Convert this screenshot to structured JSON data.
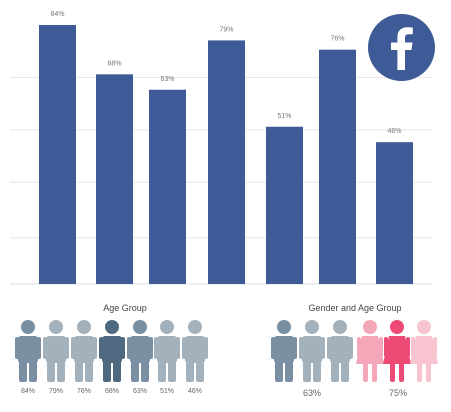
{
  "chart_data": {
    "type": "bar",
    "categories": [
      "",
      "",
      "",
      "",
      "",
      "",
      ""
    ],
    "values": [
      84,
      68,
      63,
      79,
      51,
      76,
      46
    ],
    "value_labels": [
      "84%",
      "68%",
      "63%",
      "79%",
      "51%",
      "76%",
      "46%"
    ],
    "title": "",
    "xlabel": "",
    "ylabel": "",
    "ylim": [
      0,
      100
    ],
    "grid": true,
    "bar_color": "#3e5a97"
  },
  "logo": {
    "name": "facebook-icon",
    "color": "#3e5a97",
    "letter": "f"
  },
  "age_group": {
    "title": "Age Group",
    "people": [
      {
        "label": "84%",
        "color": "#7a8fa1"
      },
      {
        "label": "79%",
        "color": "#a3b1bd"
      },
      {
        "label": "76%",
        "color": "#a3b1bd"
      },
      {
        "label": "68%",
        "color": "#4f6a80"
      },
      {
        "label": "63%",
        "color": "#7a8fa1"
      },
      {
        "label": "51%",
        "color": "#a3b1bd"
      },
      {
        "label": "46%",
        "color": "#a3b1bd"
      }
    ]
  },
  "gender_age_group": {
    "title": "Gender and Age Group",
    "male_label": "63%",
    "female_label": "75%",
    "male_colors": [
      "#7a8fa1",
      "#a3b1bd",
      "#a3b1bd"
    ],
    "female_colors": [
      "#f4a7b9",
      "#ee4a76",
      "#f7c4d0"
    ]
  }
}
